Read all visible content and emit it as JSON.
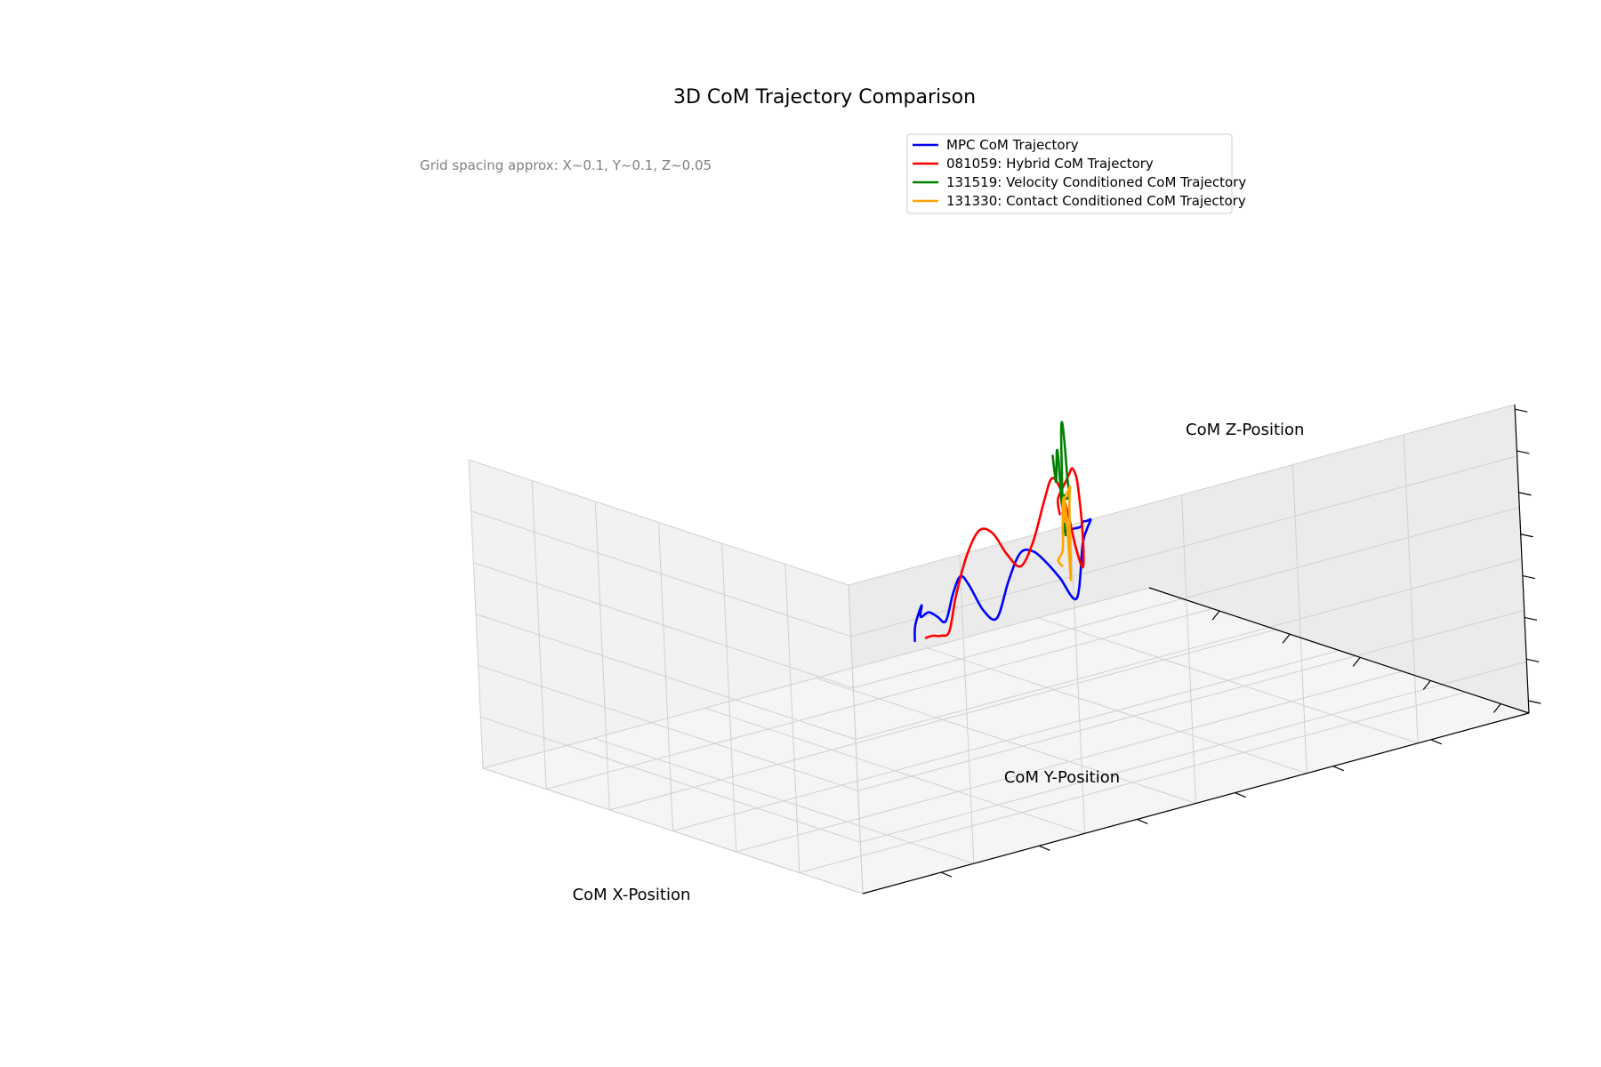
{
  "chart_data": {
    "type": "line",
    "projection": "3d",
    "title": "3D CoM Trajectory Comparison",
    "annotation": "Grid spacing approx: X~0.1, Y~0.1, Z~0.05",
    "xlabel": "CoM X-Position",
    "ylabel": "CoM Y-Position",
    "zlabel": "CoM Z-Position",
    "tick_labels_shown": false,
    "grid": true,
    "legend_position": "top-right",
    "series": [
      {
        "name": "MPC CoM Trajectory",
        "color": "#0000ff",
        "points": [
          [
            0.02,
            0.05,
            0.07
          ],
          [
            0.04,
            0.05,
            0.08
          ],
          [
            0.06,
            0.06,
            0.09
          ],
          [
            0.08,
            0.06,
            0.1
          ],
          [
            0.1,
            0.07,
            0.12
          ],
          [
            0.12,
            0.08,
            0.13
          ],
          [
            0.14,
            0.09,
            0.14
          ],
          [
            0.16,
            0.1,
            0.15
          ],
          [
            0.2,
            0.14,
            0.15
          ],
          [
            0.24,
            0.18,
            0.14
          ],
          [
            0.27,
            0.22,
            0.04
          ],
          [
            0.28,
            0.26,
            0.1
          ],
          [
            0.3,
            0.3,
            0.15
          ],
          [
            0.33,
            0.35,
            0.2
          ],
          [
            0.36,
            0.4,
            0.22
          ],
          [
            0.39,
            0.45,
            0.18
          ],
          [
            0.42,
            0.5,
            0.12
          ],
          [
            0.45,
            0.55,
            0.16
          ],
          [
            0.48,
            0.6,
            0.24
          ],
          [
            0.51,
            0.64,
            0.28
          ],
          [
            0.54,
            0.68,
            0.26
          ],
          [
            0.57,
            0.72,
            0.22
          ],
          [
            0.6,
            0.76,
            0.25
          ],
          [
            0.63,
            0.8,
            0.28
          ],
          [
            0.66,
            0.84,
            0.29
          ],
          [
            0.69,
            0.86,
            0.33
          ],
          [
            0.71,
            0.89,
            0.3
          ],
          [
            0.72,
            0.9,
            0.27
          ]
        ]
      },
      {
        "name": "081059: Hybrid CoM Trajectory",
        "color": "#ff0000",
        "points": [
          [
            0.0,
            0.04,
            0.1
          ],
          [
            0.01,
            0.05,
            0.14
          ],
          [
            0.03,
            0.05,
            0.18
          ],
          [
            0.05,
            0.06,
            0.2
          ],
          [
            0.07,
            0.07,
            0.22
          ],
          [
            0.09,
            0.08,
            0.24
          ],
          [
            0.11,
            0.09,
            0.24
          ],
          [
            0.13,
            0.1,
            0.22
          ],
          [
            0.15,
            0.11,
            0.12
          ],
          [
            0.16,
            0.12,
            0.05
          ],
          [
            0.17,
            0.14,
            0.1
          ],
          [
            0.19,
            0.17,
            0.2
          ],
          [
            0.21,
            0.2,
            0.27
          ],
          [
            0.23,
            0.23,
            0.3
          ],
          [
            0.26,
            0.27,
            0.27
          ],
          [
            0.29,
            0.32,
            0.2
          ],
          [
            0.32,
            0.37,
            0.17
          ],
          [
            0.35,
            0.42,
            0.22
          ],
          [
            0.38,
            0.47,
            0.29
          ],
          [
            0.41,
            0.52,
            0.32
          ],
          [
            0.44,
            0.57,
            0.29
          ],
          [
            0.47,
            0.62,
            0.22
          ],
          [
            0.5,
            0.66,
            0.16
          ],
          [
            0.53,
            0.7,
            0.17
          ],
          [
            0.56,
            0.74,
            0.19
          ],
          [
            0.58,
            0.77,
            0.2
          ]
        ]
      },
      {
        "name": "131519: Velocity Conditioned CoM Trajectory",
        "color": "#008000",
        "points": [
          [
            0.0,
            0.03,
            0.05
          ],
          [
            0.01,
            0.04,
            0.1
          ],
          [
            0.02,
            0.05,
            0.14
          ],
          [
            0.04,
            0.06,
            0.16
          ],
          [
            0.06,
            0.07,
            0.16
          ],
          [
            0.08,
            0.08,
            0.18
          ],
          [
            0.09,
            0.09,
            0.22
          ],
          [
            0.1,
            0.1,
            0.3
          ],
          [
            0.11,
            0.11,
            0.35
          ],
          [
            0.12,
            0.12,
            0.36
          ],
          [
            0.13,
            0.13,
            0.32
          ],
          [
            0.14,
            0.14,
            0.22
          ],
          [
            0.15,
            0.15,
            0.2
          ],
          [
            0.16,
            0.16,
            0.3
          ],
          [
            0.17,
            0.17,
            0.33
          ],
          [
            0.18,
            0.18,
            0.3
          ],
          [
            0.19,
            0.19,
            0.27
          ],
          [
            0.2,
            0.2,
            0.3
          ],
          [
            0.21,
            0.21,
            0.34
          ]
        ]
      },
      {
        "name": "131330: Contact Conditioned CoM Trajectory",
        "color": "#ffa500",
        "points": [
          [
            0.0,
            0.03,
            0.08
          ],
          [
            0.01,
            0.04,
            0.12
          ],
          [
            0.03,
            0.05,
            0.15
          ],
          [
            0.05,
            0.06,
            0.17
          ],
          [
            0.07,
            0.07,
            0.19
          ],
          [
            0.08,
            0.08,
            0.17
          ],
          [
            0.09,
            0.09,
            0.11
          ],
          [
            0.1,
            0.1,
            0.0
          ],
          [
            0.105,
            0.105,
            0.05
          ],
          [
            0.11,
            0.11,
            0.12
          ],
          [
            0.12,
            0.12,
            0.18
          ],
          [
            0.13,
            0.13,
            0.2
          ],
          [
            0.14,
            0.14,
            0.19
          ],
          [
            0.15,
            0.15,
            0.15
          ],
          [
            0.16,
            0.16,
            0.1
          ],
          [
            0.16,
            0.17,
            0.08
          ],
          [
            0.17,
            0.17,
            0.07
          ]
        ]
      }
    ]
  }
}
